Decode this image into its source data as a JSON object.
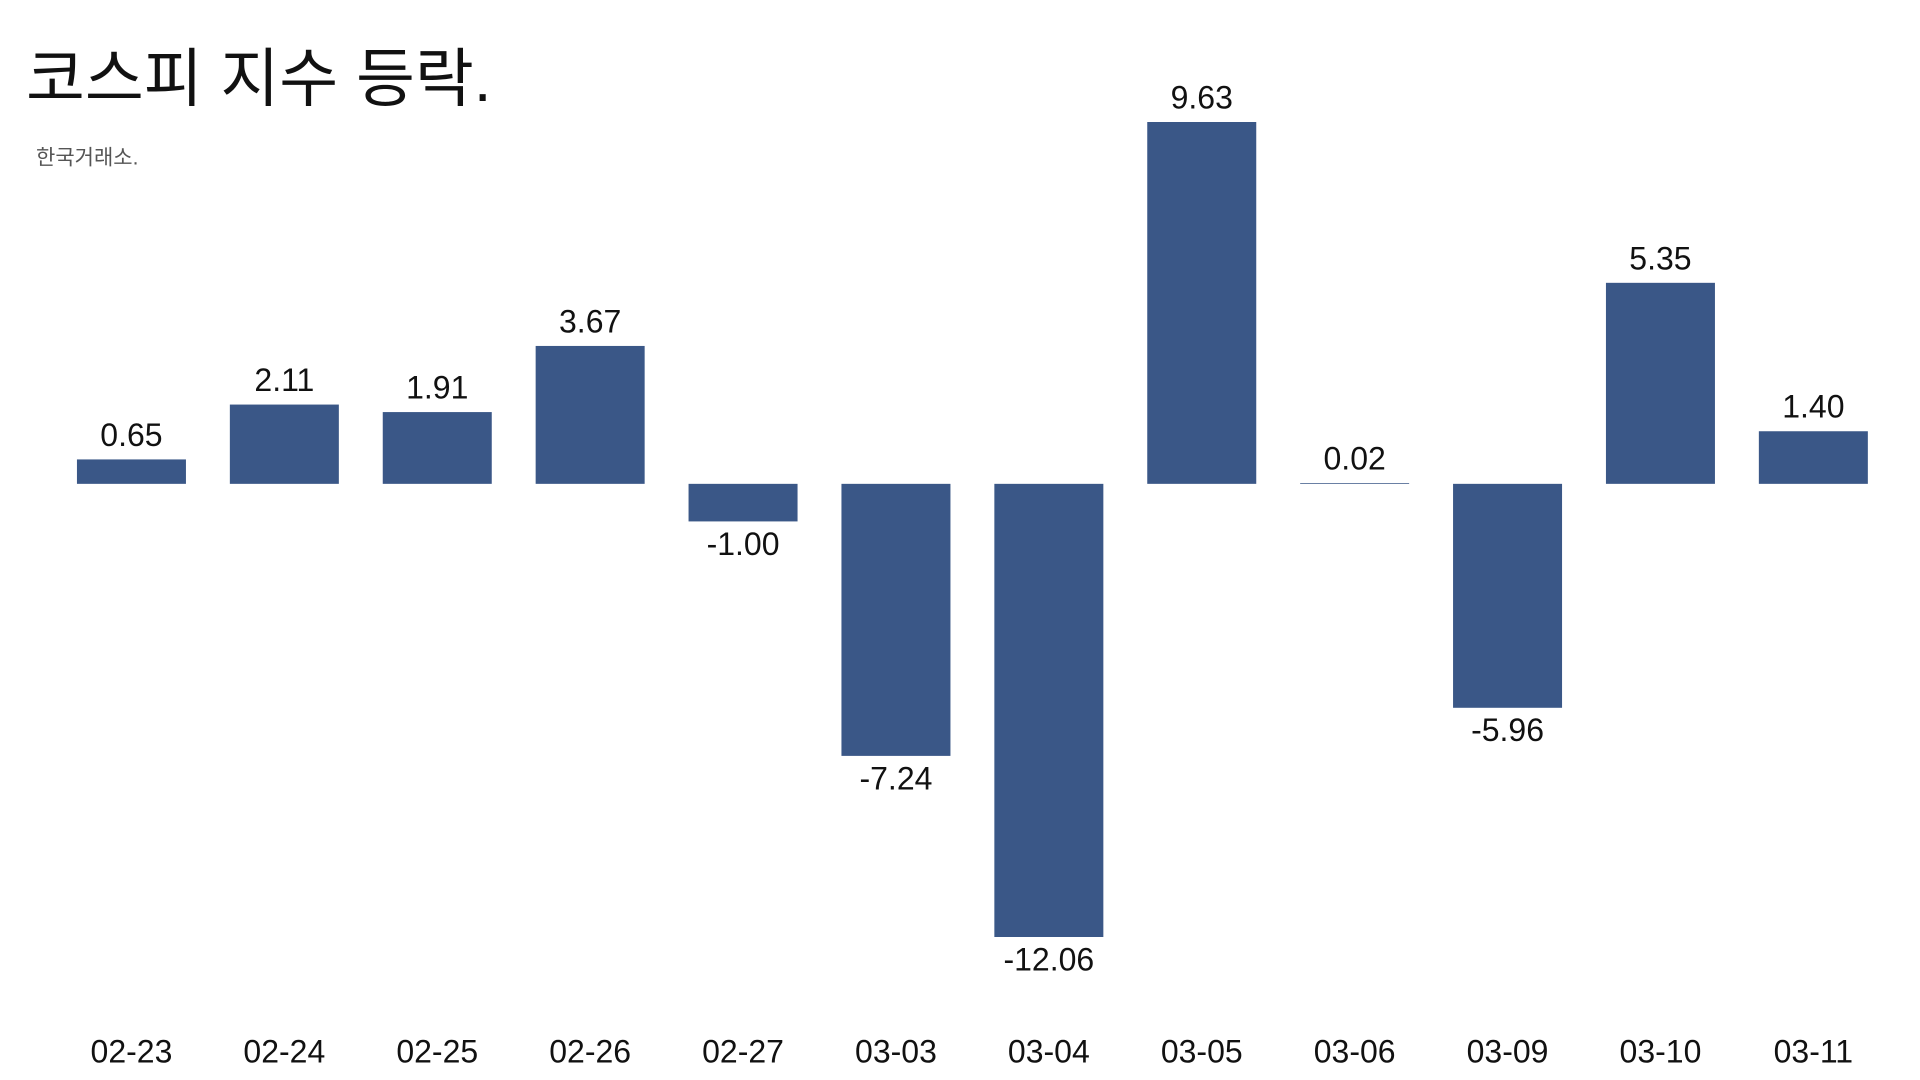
{
  "chart_data": {
    "type": "bar",
    "title": "코스피 지수 등락.",
    "subtitle": "한국거래소.",
    "categories": [
      "02-23",
      "02-24",
      "02-25",
      "02-26",
      "02-27",
      "03-03",
      "03-04",
      "03-05",
      "03-06",
      "03-09",
      "03-10",
      "03-11"
    ],
    "values": [
      0.65,
      2.11,
      1.91,
      3.67,
      -1.0,
      -7.24,
      -12.06,
      9.63,
      0.02,
      -5.96,
      5.35,
      1.4
    ],
    "value_labels": [
      "0.65",
      "2.11",
      "1.91",
      "3.67",
      "-1.00",
      "-7.24",
      "-12.06",
      "9.63",
      "0.02",
      "-5.96",
      "5.35",
      "1.40"
    ],
    "color": "#3a5787"
  }
}
